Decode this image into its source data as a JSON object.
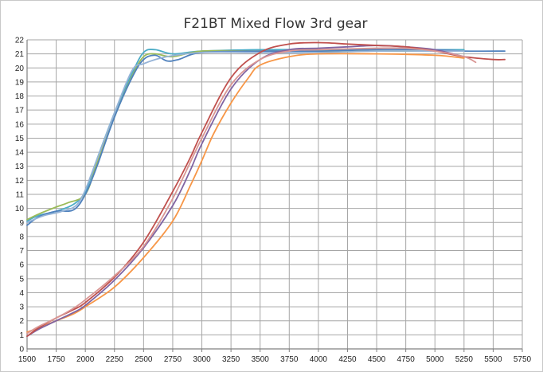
{
  "chart_data": {
    "type": "line",
    "title": "F21BT Mixed Flow 3rd gear",
    "xlabel": "",
    "ylabel": "",
    "xlim": [
      1500,
      5750
    ],
    "ylim": [
      0,
      22
    ],
    "x_ticks": [
      "1500",
      "1750",
      "2000",
      "2250",
      "2500",
      "2750",
      "3000",
      "3250",
      "3500",
      "3750",
      "4000",
      "4250",
      "4500",
      "4750",
      "5000",
      "5250",
      "5500",
      "5750"
    ],
    "y_ticks": [
      "0",
      "1",
      "2",
      "3",
      "4",
      "5",
      "6",
      "7",
      "8",
      "9",
      "10",
      "11",
      "12",
      "13",
      "14",
      "15",
      "16",
      "17",
      "18",
      "19",
      "20",
      "21",
      "22"
    ],
    "grid": true,
    "legend": "none",
    "series": [
      {
        "color": "#4bacc6",
        "points": [
          [
            1500,
            9.1
          ],
          [
            1600,
            9.5
          ],
          [
            1750,
            9.8
          ],
          [
            1900,
            10.3
          ],
          [
            2000,
            11.2
          ],
          [
            2100,
            13.5
          ],
          [
            2250,
            16.8
          ],
          [
            2400,
            19.6
          ],
          [
            2500,
            21.1
          ],
          [
            2600,
            21.3
          ],
          [
            2750,
            21.0
          ],
          [
            3000,
            21.2
          ],
          [
            3500,
            21.3
          ],
          [
            4000,
            21.3
          ],
          [
            4500,
            21.3
          ],
          [
            5000,
            21.3
          ],
          [
            5250,
            21.3
          ]
        ]
      },
      {
        "color": "#9bbb59",
        "points": [
          [
            1500,
            9.2
          ],
          [
            1600,
            9.6
          ],
          [
            1750,
            10.1
          ],
          [
            1850,
            10.4
          ],
          [
            2000,
            11.0
          ],
          [
            2100,
            13.2
          ],
          [
            2250,
            16.5
          ],
          [
            2400,
            19.4
          ],
          [
            2500,
            20.8
          ],
          [
            2600,
            21.0
          ],
          [
            2750,
            20.8
          ],
          [
            3000,
            21.2
          ],
          [
            3500,
            21.2
          ],
          [
            4000,
            21.2
          ],
          [
            4500,
            21.2
          ],
          [
            5000,
            21.2
          ],
          [
            5250,
            21.2
          ]
        ]
      },
      {
        "color": "#4f81bd",
        "points": [
          [
            1500,
            8.8
          ],
          [
            1600,
            9.4
          ],
          [
            1750,
            9.8
          ],
          [
            1900,
            9.9
          ],
          [
            2000,
            11.0
          ],
          [
            2100,
            13.0
          ],
          [
            2250,
            16.5
          ],
          [
            2400,
            19.3
          ],
          [
            2500,
            20.6
          ],
          [
            2600,
            20.9
          ],
          [
            2700,
            20.5
          ],
          [
            2800,
            20.6
          ],
          [
            3000,
            21.1
          ],
          [
            3500,
            21.2
          ],
          [
            4000,
            21.2
          ],
          [
            4500,
            21.3
          ],
          [
            5000,
            21.3
          ],
          [
            5250,
            21.2
          ],
          [
            5600,
            21.2
          ]
        ]
      },
      {
        "color": "#95b3d7",
        "points": [
          [
            1500,
            9.0
          ],
          [
            1650,
            9.5
          ],
          [
            1800,
            9.8
          ],
          [
            1950,
            10.5
          ],
          [
            2100,
            13.5
          ],
          [
            2250,
            16.8
          ],
          [
            2400,
            19.8
          ],
          [
            2500,
            20.3
          ],
          [
            2700,
            20.8
          ],
          [
            3000,
            21.1
          ],
          [
            3500,
            21.1
          ],
          [
            4000,
            21.1
          ],
          [
            4500,
            21.2
          ],
          [
            5000,
            21.2
          ],
          [
            5250,
            21.2
          ]
        ]
      },
      {
        "color": "#f79646",
        "points": [
          [
            1500,
            1.2
          ],
          [
            1600,
            1.5
          ],
          [
            1750,
            2.0
          ],
          [
            1900,
            2.5
          ],
          [
            2000,
            3.0
          ],
          [
            2250,
            4.4
          ],
          [
            2500,
            6.5
          ],
          [
            2750,
            9.1
          ],
          [
            2900,
            11.6
          ],
          [
            3000,
            13.4
          ],
          [
            3100,
            15.3
          ],
          [
            3250,
            17.5
          ],
          [
            3400,
            19.3
          ],
          [
            3500,
            20.2
          ],
          [
            3750,
            20.8
          ],
          [
            4000,
            21.0
          ],
          [
            4500,
            21.0
          ],
          [
            5000,
            20.9
          ],
          [
            5250,
            20.7
          ]
        ]
      },
      {
        "color": "#8064a2",
        "points": [
          [
            1500,
            0.9
          ],
          [
            1600,
            1.4
          ],
          [
            1750,
            2.0
          ],
          [
            1900,
            2.6
          ],
          [
            2000,
            3.1
          ],
          [
            2250,
            4.9
          ],
          [
            2500,
            7.2
          ],
          [
            2750,
            10.2
          ],
          [
            2900,
            12.7
          ],
          [
            3000,
            14.6
          ],
          [
            3250,
            18.5
          ],
          [
            3500,
            20.6
          ],
          [
            3750,
            21.3
          ],
          [
            4000,
            21.4
          ],
          [
            4250,
            21.5
          ],
          [
            4500,
            21.6
          ],
          [
            4750,
            21.5
          ],
          [
            5000,
            21.3
          ],
          [
            5250,
            20.8
          ]
        ]
      },
      {
        "color": "#c0504d",
        "points": [
          [
            1500,
            0.9
          ],
          [
            1600,
            1.5
          ],
          [
            1750,
            2.2
          ],
          [
            1900,
            2.8
          ],
          [
            2000,
            3.3
          ],
          [
            2250,
            5.1
          ],
          [
            2500,
            7.6
          ],
          [
            2750,
            11.2
          ],
          [
            2900,
            13.6
          ],
          [
            3000,
            15.4
          ],
          [
            3250,
            19.3
          ],
          [
            3500,
            21.1
          ],
          [
            3750,
            21.7
          ],
          [
            4000,
            21.8
          ],
          [
            4250,
            21.7
          ],
          [
            4500,
            21.6
          ],
          [
            4750,
            21.5
          ],
          [
            5000,
            21.2
          ],
          [
            5250,
            20.8
          ],
          [
            5500,
            20.6
          ],
          [
            5600,
            20.6
          ]
        ]
      },
      {
        "color": "#d99694",
        "points": [
          [
            1500,
            1.1
          ],
          [
            1600,
            1.6
          ],
          [
            1750,
            2.2
          ],
          [
            1900,
            2.9
          ],
          [
            2000,
            3.5
          ],
          [
            2250,
            5.2
          ],
          [
            2500,
            7.3
          ],
          [
            2750,
            10.7
          ],
          [
            3000,
            15.0
          ],
          [
            3250,
            18.8
          ],
          [
            3500,
            20.6
          ],
          [
            3750,
            21.2
          ],
          [
            4000,
            21.3
          ],
          [
            4500,
            21.4
          ],
          [
            4750,
            21.4
          ],
          [
            5000,
            21.2
          ],
          [
            5250,
            20.8
          ],
          [
            5350,
            20.4
          ]
        ]
      }
    ]
  }
}
